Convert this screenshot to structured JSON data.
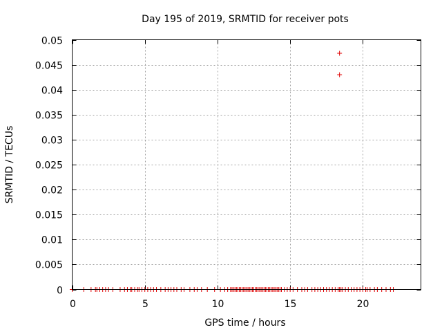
{
  "chart_data": {
    "type": "scatter",
    "title": "Day 195 of 2019, SRMTID for receiver pots",
    "xlabel": "GPS time / hours",
    "ylabel": "SRMTID / TECUs",
    "xlim": [
      0,
      24
    ],
    "ylim": [
      0,
      0.05
    ],
    "xticks": [
      0,
      5,
      10,
      15,
      20
    ],
    "xtick_labels": [
      "0",
      "5",
      "10",
      "15",
      "20"
    ],
    "yticks": [
      0,
      0.005,
      0.01,
      0.015,
      0.02,
      0.025,
      0.03,
      0.035,
      0.04,
      0.045,
      0.05
    ],
    "ytick_labels": [
      "0",
      "0.005",
      "0.01",
      "0.015",
      "0.02",
      "0.025",
      "0.03",
      "0.035",
      "0.04",
      "0.045",
      "0.05"
    ],
    "grid": true,
    "marker": "+",
    "series": [
      {
        "name": "SRMTID",
        "color": "#e00000",
        "points": [
          [
            0.0,
            0
          ],
          [
            0.8,
            0
          ],
          [
            1.3,
            0
          ],
          [
            1.6,
            0
          ],
          [
            1.7,
            0
          ],
          [
            1.9,
            0
          ],
          [
            2.1,
            0
          ],
          [
            2.3,
            0
          ],
          [
            2.5,
            0
          ],
          [
            2.8,
            0
          ],
          [
            3.3,
            0
          ],
          [
            3.6,
            0
          ],
          [
            3.8,
            0
          ],
          [
            4.0,
            0
          ],
          [
            4.1,
            0
          ],
          [
            4.3,
            0
          ],
          [
            4.5,
            0
          ],
          [
            4.6,
            0
          ],
          [
            4.8,
            0
          ],
          [
            5.0,
            0
          ],
          [
            5.2,
            0
          ],
          [
            5.4,
            0
          ],
          [
            5.6,
            0
          ],
          [
            5.8,
            0
          ],
          [
            6.1,
            0
          ],
          [
            6.4,
            0
          ],
          [
            6.6,
            0
          ],
          [
            6.8,
            0
          ],
          [
            7.0,
            0
          ],
          [
            7.2,
            0
          ],
          [
            7.5,
            0
          ],
          [
            7.7,
            0
          ],
          [
            8.1,
            0
          ],
          [
            8.4,
            0
          ],
          [
            8.6,
            0
          ],
          [
            8.9,
            0
          ],
          [
            9.3,
            0
          ],
          [
            9.8,
            0
          ],
          [
            10.2,
            0
          ],
          [
            10.5,
            0
          ],
          [
            10.7,
            0
          ],
          [
            10.9,
            0
          ],
          [
            11.0,
            0
          ],
          [
            11.1,
            0
          ],
          [
            11.2,
            0
          ],
          [
            11.3,
            0
          ],
          [
            11.4,
            0
          ],
          [
            11.5,
            0
          ],
          [
            11.6,
            0
          ],
          [
            11.7,
            0
          ],
          [
            11.8,
            0
          ],
          [
            11.9,
            0
          ],
          [
            12.0,
            0
          ],
          [
            12.1,
            0
          ],
          [
            12.2,
            0
          ],
          [
            12.3,
            0
          ],
          [
            12.4,
            0
          ],
          [
            12.5,
            0
          ],
          [
            12.6,
            0
          ],
          [
            12.7,
            0
          ],
          [
            12.8,
            0
          ],
          [
            12.9,
            0
          ],
          [
            13.0,
            0
          ],
          [
            13.1,
            0
          ],
          [
            13.2,
            0
          ],
          [
            13.3,
            0
          ],
          [
            13.4,
            0
          ],
          [
            13.5,
            0
          ],
          [
            13.6,
            0
          ],
          [
            13.7,
            0
          ],
          [
            13.8,
            0
          ],
          [
            13.9,
            0
          ],
          [
            14.0,
            0
          ],
          [
            14.1,
            0
          ],
          [
            14.2,
            0
          ],
          [
            14.3,
            0
          ],
          [
            14.4,
            0
          ],
          [
            14.6,
            0
          ],
          [
            14.8,
            0
          ],
          [
            15.0,
            0
          ],
          [
            15.2,
            0
          ],
          [
            15.5,
            0
          ],
          [
            15.8,
            0
          ],
          [
            16.0,
            0
          ],
          [
            16.2,
            0
          ],
          [
            16.5,
            0
          ],
          [
            16.7,
            0
          ],
          [
            16.9,
            0
          ],
          [
            17.1,
            0
          ],
          [
            17.3,
            0
          ],
          [
            17.5,
            0
          ],
          [
            17.7,
            0
          ],
          [
            17.9,
            0
          ],
          [
            18.1,
            0
          ],
          [
            18.3,
            0
          ],
          [
            18.4,
            0
          ],
          [
            18.5,
            0
          ],
          [
            18.6,
            0
          ],
          [
            18.8,
            0
          ],
          [
            19.0,
            0
          ],
          [
            19.2,
            0
          ],
          [
            19.4,
            0
          ],
          [
            19.6,
            0
          ],
          [
            19.8,
            0
          ],
          [
            20.0,
            0
          ],
          [
            20.2,
            0
          ],
          [
            20.3,
            0
          ],
          [
            20.5,
            0
          ],
          [
            20.8,
            0
          ],
          [
            21.0,
            0
          ],
          [
            21.3,
            0
          ],
          [
            21.6,
            0
          ],
          [
            21.9,
            0
          ],
          [
            22.1,
            0
          ],
          [
            18.4,
            0.0473
          ],
          [
            18.4,
            0.043
          ]
        ]
      }
    ]
  }
}
